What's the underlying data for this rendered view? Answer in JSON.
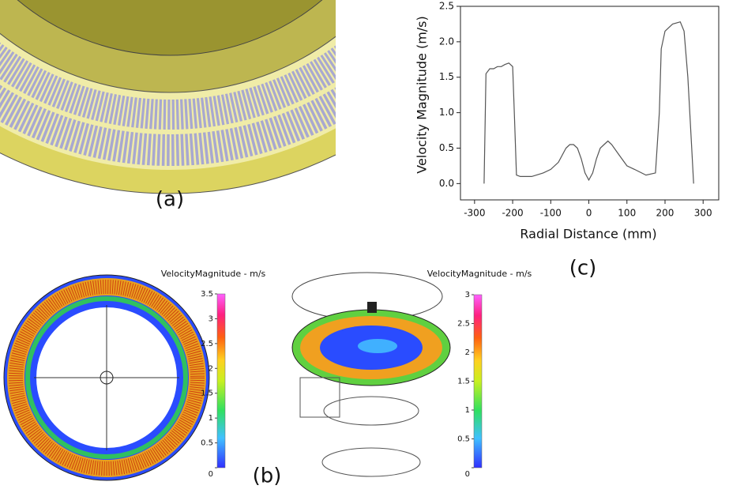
{
  "chart_data": [
    {
      "type": "line",
      "color": "#555555",
      "x": [
        -275,
        -270,
        -260,
        -250,
        -240,
        -230,
        -220,
        -210,
        -200,
        -195,
        -190,
        -180,
        -150,
        -120,
        -100,
        -80,
        -60,
        -50,
        -40,
        -30,
        -20,
        -10,
        0,
        10,
        20,
        30,
        40,
        50,
        60,
        80,
        100,
        120,
        150,
        175,
        185,
        190,
        200,
        210,
        220,
        240,
        250,
        260,
        270,
        275
      ],
      "values": [
        0.0,
        1.55,
        1.62,
        1.62,
        1.65,
        1.65,
        1.68,
        1.7,
        1.65,
        0.9,
        0.12,
        0.1,
        0.1,
        0.15,
        0.2,
        0.3,
        0.5,
        0.55,
        0.55,
        0.5,
        0.35,
        0.15,
        0.05,
        0.15,
        0.35,
        0.5,
        0.55,
        0.6,
        0.55,
        0.4,
        0.25,
        0.2,
        0.12,
        0.15,
        1.0,
        1.9,
        2.15,
        2.2,
        2.25,
        2.28,
        2.15,
        1.5,
        0.5,
        0.0
      ],
      "xlabel": "Radial Distance (mm)",
      "ylabel": "Velocity Magnitude (m/s)",
      "xlim": [
        -337,
        341
      ],
      "ylim": [
        -0.23,
        2.5
      ],
      "xticks": [
        -300,
        -200,
        -100,
        0,
        100,
        200,
        300
      ],
      "yticks": [
        {
          "value": 0,
          "label": "0.0"
        },
        0.5,
        {
          "value": 1,
          "label": "1.0"
        },
        1.5,
        {
          "value": 2,
          "label": "2.0"
        },
        2.5
      ],
      "panel_label": "(c)"
    },
    {
      "type": "colorbar",
      "title": "VelocityMagnitude - m/s",
      "ylim": [
        0,
        3.5
      ],
      "yticks": [
        3.5,
        3,
        2.5,
        2,
        1.5,
        1,
        0.5,
        0
      ]
    },
    {
      "type": "colorbar",
      "title": "VelocityMagnitude - m/s",
      "ylim": [
        0,
        3
      ],
      "yticks": [
        3,
        2.5,
        2,
        1.5,
        1,
        0.5,
        0
      ]
    }
  ],
  "panels": {
    "a": {
      "label": "(a)"
    },
    "b": {
      "label": "(b)"
    }
  }
}
